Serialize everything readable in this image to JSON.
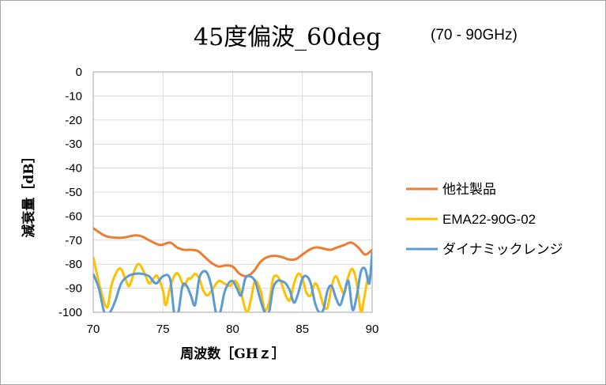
{
  "chart_data": {
    "type": "line",
    "title": "45度偏波_60deg",
    "subtitle": "(70 - 90GHz)",
    "xlabel": "周波数［GHｚ］",
    "ylabel": "減衰量［dB］",
    "xlim": [
      70,
      90
    ],
    "ylim": [
      -100,
      0
    ],
    "x_ticks": [
      "70",
      "75",
      "80",
      "85",
      "90"
    ],
    "y_ticks": [
      "0",
      "-10",
      "-20",
      "-30",
      "-40",
      "-50",
      "-60",
      "-70",
      "-80",
      "-90",
      "-100"
    ],
    "grid": true,
    "legend_position": "right",
    "series": [
      {
        "name": "他社製品",
        "color": "#ED7D31",
        "points": [
          [
            70,
            -65
          ],
          [
            70.5,
            -67
          ],
          [
            71,
            -68.5
          ],
          [
            72,
            -69
          ],
          [
            73,
            -68
          ],
          [
            73.5,
            -68.5
          ],
          [
            74,
            -70
          ],
          [
            74.8,
            -72
          ],
          [
            75.5,
            -71
          ],
          [
            76,
            -73
          ],
          [
            76.5,
            -74
          ],
          [
            77,
            -74
          ],
          [
            77.5,
            -74.5
          ],
          [
            78,
            -77
          ],
          [
            78.5,
            -79.5
          ],
          [
            79,
            -81
          ],
          [
            79.5,
            -80.5
          ],
          [
            80,
            -81
          ],
          [
            80.5,
            -84
          ],
          [
            81,
            -85
          ],
          [
            81.5,
            -83
          ],
          [
            82,
            -79
          ],
          [
            82.5,
            -77
          ],
          [
            83,
            -76.5
          ],
          [
            83.5,
            -77
          ],
          [
            84,
            -78
          ],
          [
            84.5,
            -78
          ],
          [
            85,
            -76
          ],
          [
            85.5,
            -74
          ],
          [
            86,
            -73
          ],
          [
            86.5,
            -73.5
          ],
          [
            87,
            -74
          ],
          [
            87.5,
            -73
          ],
          [
            88,
            -72
          ],
          [
            88.5,
            -71
          ],
          [
            89,
            -73
          ],
          [
            89.5,
            -76
          ],
          [
            90,
            -74
          ]
        ]
      },
      {
        "name": "EMA22-90G-02",
        "color": "#FFC000",
        "points": [
          [
            70,
            -77
          ],
          [
            70.3,
            -85
          ],
          [
            70.6,
            -92
          ],
          [
            71,
            -98
          ],
          [
            71.3,
            -89
          ],
          [
            71.7,
            -83
          ],
          [
            72,
            -82
          ],
          [
            72.3,
            -86
          ],
          [
            72.6,
            -89
          ],
          [
            73,
            -82
          ],
          [
            73.3,
            -80
          ],
          [
            73.7,
            -84
          ],
          [
            74,
            -88
          ],
          [
            74.3,
            -86
          ],
          [
            74.6,
            -85
          ],
          [
            75,
            -91
          ],
          [
            75.2,
            -97
          ],
          [
            75.5,
            -90
          ],
          [
            75.8,
            -85
          ],
          [
            76.1,
            -84
          ],
          [
            76.5,
            -89
          ],
          [
            76.8,
            -86
          ],
          [
            77,
            -86
          ],
          [
            77.3,
            -84
          ],
          [
            77.6,
            -86
          ],
          [
            77.9,
            -91
          ],
          [
            78.2,
            -93
          ],
          [
            78.6,
            -90
          ],
          [
            79,
            -87
          ],
          [
            79.4,
            -88
          ],
          [
            79.8,
            -89
          ],
          [
            80.2,
            -87
          ],
          [
            80.6,
            -92
          ],
          [
            81,
            -100
          ],
          [
            81.3,
            -95
          ],
          [
            81.6,
            -87
          ],
          [
            82,
            -91
          ],
          [
            82.3,
            -99
          ],
          [
            82.6,
            -96
          ],
          [
            82.9,
            -86
          ],
          [
            83.2,
            -85
          ],
          [
            83.5,
            -88
          ],
          [
            83.8,
            -93
          ],
          [
            84.1,
            -95
          ],
          [
            84.4,
            -88
          ],
          [
            84.7,
            -84
          ],
          [
            85,
            -86
          ],
          [
            85.3,
            -92
          ],
          [
            85.6,
            -93
          ],
          [
            85.9,
            -88
          ],
          [
            86.2,
            -91
          ],
          [
            86.5,
            -97
          ],
          [
            86.8,
            -98
          ],
          [
            87.1,
            -89
          ],
          [
            87.4,
            -85
          ],
          [
            87.7,
            -89
          ],
          [
            88,
            -92
          ],
          [
            88.3,
            -85
          ],
          [
            88.6,
            -82
          ],
          [
            88.9,
            -88
          ],
          [
            89.2,
            -100
          ],
          [
            89.4,
            -95
          ],
          [
            89.7,
            -86
          ],
          [
            90,
            -84
          ]
        ]
      },
      {
        "name": "ダイナミックレンジ",
        "color": "#5B9BD5",
        "points": [
          [
            70,
            -84
          ],
          [
            70.4,
            -90
          ],
          [
            70.8,
            -100
          ],
          [
            71.2,
            -100
          ],
          [
            71.6,
            -95
          ],
          [
            72,
            -88
          ],
          [
            72.5,
            -85
          ],
          [
            73,
            -84
          ],
          [
            73.5,
            -84
          ],
          [
            74,
            -85
          ],
          [
            74.5,
            -88
          ],
          [
            75,
            -85
          ],
          [
            75.5,
            -86
          ],
          [
            75.8,
            -100
          ],
          [
            76.1,
            -100
          ],
          [
            76.4,
            -89
          ],
          [
            76.7,
            -89
          ],
          [
            77,
            -93
          ],
          [
            77.3,
            -97
          ],
          [
            77.6,
            -86
          ],
          [
            77.9,
            -83
          ],
          [
            78.2,
            -84
          ],
          [
            78.5,
            -90
          ],
          [
            78.8,
            -100
          ],
          [
            79.1,
            -100
          ],
          [
            79.4,
            -92
          ],
          [
            79.7,
            -88
          ],
          [
            80,
            -87
          ],
          [
            80.3,
            -90
          ],
          [
            80.6,
            -93
          ],
          [
            80.9,
            -86
          ],
          [
            81.2,
            -85
          ],
          [
            81.6,
            -87
          ],
          [
            82,
            -95
          ],
          [
            82.3,
            -100
          ],
          [
            82.6,
            -100
          ],
          [
            82.9,
            -90
          ],
          [
            83.2,
            -87
          ],
          [
            83.5,
            -87
          ],
          [
            83.8,
            -88
          ],
          [
            84.1,
            -91
          ],
          [
            84.4,
            -96
          ],
          [
            84.7,
            -92
          ],
          [
            85,
            -86
          ],
          [
            85.3,
            -85
          ],
          [
            85.6,
            -88
          ],
          [
            85.9,
            -96
          ],
          [
            86.2,
            -100
          ],
          [
            86.5,
            -99
          ],
          [
            86.8,
            -91
          ],
          [
            87.1,
            -89
          ],
          [
            87.4,
            -94
          ],
          [
            87.7,
            -97
          ],
          [
            88,
            -92
          ],
          [
            88.3,
            -87
          ],
          [
            88.6,
            -99
          ],
          [
            88.9,
            -93
          ],
          [
            89.2,
            -83
          ],
          [
            89.5,
            -82
          ],
          [
            89.8,
            -88
          ],
          [
            90,
            -75
          ]
        ]
      }
    ]
  }
}
